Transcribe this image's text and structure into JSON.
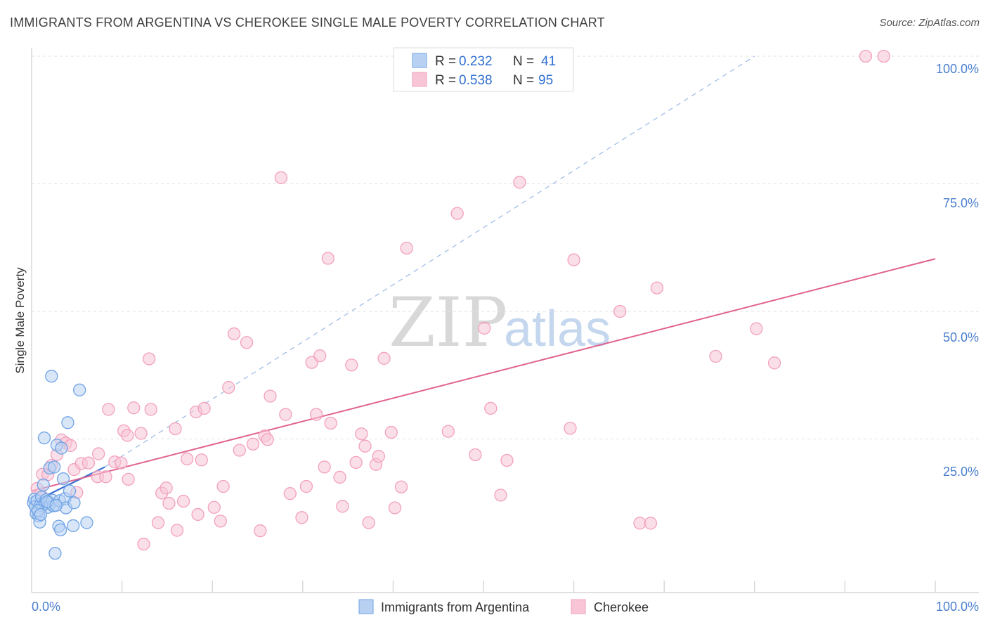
{
  "title": "IMMIGRANTS FROM ARGENTINA VS CHEROKEE SINGLE MALE POVERTY CORRELATION CHART",
  "source": "Source: ZipAtlas.com",
  "watermark": {
    "part1": "ZIP",
    "part2": "atlas"
  },
  "chart_data": {
    "type": "scatter",
    "title": "IMMIGRANTS FROM ARGENTINA VS CHEROKEE SINGLE MALE POVERTY CORRELATION CHART",
    "xlabel": "",
    "ylabel": "Single Male Poverty",
    "xlim": [
      0,
      100
    ],
    "ylim": [
      0,
      100
    ],
    "x_tick_labels": [
      "0.0%",
      "100.0%"
    ],
    "y_tick_labels": [
      "100.0%",
      "75.0%",
      "50.0%",
      "25.0%"
    ],
    "y_ticks": [
      100,
      75,
      50,
      25
    ],
    "grid": true,
    "legend": {
      "position": "top-center",
      "entries": [
        {
          "r_label": "R =",
          "r_value": "0.232",
          "n_label": "N =",
          "n_value": "41"
        },
        {
          "r_label": "R =",
          "r_value": "0.538",
          "n_label": "N =",
          "n_value": "95"
        }
      ]
    },
    "series": [
      {
        "name": "Immigrants from Argentina",
        "color": "#6fa3e6",
        "fill": "#b8d1f3",
        "trend": {
          "x": [
            0,
            8.1
          ],
          "y": [
            12.5,
            19.5
          ],
          "style": "solid",
          "color": "#3a6fd0"
        },
        "trend_extension": {
          "x": [
            8.1,
            80
          ],
          "y": [
            19.5,
            100
          ],
          "style": "dashed",
          "color": "#9ab9e6"
        },
        "points": [
          [
            0.2,
            12.5
          ],
          [
            0.3,
            13.2
          ],
          [
            0.4,
            11.8
          ],
          [
            0.5,
            10.4
          ],
          [
            0.6,
            12.9
          ],
          [
            0.8,
            9.9
          ],
          [
            0.9,
            8.7
          ],
          [
            1.0,
            12.2
          ],
          [
            1.1,
            13.6
          ],
          [
            1.2,
            11.9
          ],
          [
            1.3,
            16.0
          ],
          [
            1.4,
            25.2
          ],
          [
            1.5,
            12.4
          ],
          [
            1.6,
            13.1
          ],
          [
            1.8,
            11.6
          ],
          [
            1.9,
            12.6
          ],
          [
            2.0,
            19.3
          ],
          [
            2.1,
            12.3
          ],
          [
            2.2,
            37.3
          ],
          [
            2.3,
            13.0
          ],
          [
            2.4,
            11.9
          ],
          [
            2.5,
            19.5
          ],
          [
            2.6,
            2.6
          ],
          [
            2.8,
            23.8
          ],
          [
            3.0,
            7.9
          ],
          [
            3.1,
            12.9
          ],
          [
            3.2,
            7.2
          ],
          [
            3.3,
            23.2
          ],
          [
            3.5,
            17.2
          ],
          [
            3.7,
            13.3
          ],
          [
            3.8,
            11.5
          ],
          [
            4.0,
            28.2
          ],
          [
            4.2,
            14.8
          ],
          [
            4.6,
            8.0
          ],
          [
            4.7,
            12.5
          ],
          [
            5.3,
            34.6
          ],
          [
            6.1,
            8.6
          ],
          [
            0.7,
            11.0
          ],
          [
            1.7,
            12.7
          ],
          [
            2.7,
            12.0
          ],
          [
            1.0,
            10.2
          ]
        ]
      },
      {
        "name": "Cherokee",
        "color": "#f2a0bd",
        "fill": "#f8c5d6",
        "trend": {
          "x": [
            0,
            100
          ],
          "y": [
            14.8,
            60.3
          ],
          "style": "solid",
          "color": "#e0608e"
        },
        "points": [
          [
            0.6,
            15.3
          ],
          [
            1.0,
            14.2
          ],
          [
            1.2,
            18.1
          ],
          [
            1.8,
            18.0
          ],
          [
            2.2,
            19.8
          ],
          [
            2.8,
            21.9
          ],
          [
            3.3,
            24.8
          ],
          [
            3.8,
            24.2
          ],
          [
            4.3,
            23.7
          ],
          [
            4.7,
            19.0
          ],
          [
            5.0,
            14.5
          ],
          [
            5.5,
            20.2
          ],
          [
            6.3,
            20.3
          ],
          [
            7.3,
            17.6
          ],
          [
            7.4,
            22.1
          ],
          [
            8.2,
            17.6
          ],
          [
            8.5,
            30.8
          ],
          [
            9.2,
            20.5
          ],
          [
            9.9,
            20.3
          ],
          [
            10.2,
            26.6
          ],
          [
            10.6,
            25.7
          ],
          [
            10.7,
            17.1
          ],
          [
            11.3,
            31.1
          ],
          [
            12.1,
            26.1
          ],
          [
            12.4,
            4.4
          ],
          [
            13.0,
            40.7
          ],
          [
            13.2,
            30.8
          ],
          [
            14.0,
            8.6
          ],
          [
            14.4,
            14.4
          ],
          [
            14.9,
            15.4
          ],
          [
            15.2,
            12.4
          ],
          [
            15.9,
            27.0
          ],
          [
            16.1,
            7.1
          ],
          [
            16.8,
            12.8
          ],
          [
            17.2,
            21.1
          ],
          [
            18.2,
            30.3
          ],
          [
            18.4,
            10.2
          ],
          [
            18.8,
            20.9
          ],
          [
            19.1,
            31.0
          ],
          [
            20.2,
            11.6
          ],
          [
            20.9,
            8.9
          ],
          [
            21.2,
            15.7
          ],
          [
            21.8,
            35.1
          ],
          [
            22.4,
            45.6
          ],
          [
            23.0,
            22.8
          ],
          [
            23.8,
            43.9
          ],
          [
            24.5,
            24.0
          ],
          [
            25.3,
            7.0
          ],
          [
            25.8,
            25.6
          ],
          [
            26.1,
            24.9
          ],
          [
            26.4,
            33.4
          ],
          [
            27.6,
            76.2
          ],
          [
            28.1,
            29.8
          ],
          [
            28.6,
            14.3
          ],
          [
            29.9,
            9.6
          ],
          [
            30.4,
            15.7
          ],
          [
            31.0,
            40.0
          ],
          [
            31.5,
            29.8
          ],
          [
            31.9,
            41.3
          ],
          [
            32.4,
            19.5
          ],
          [
            32.8,
            60.4
          ],
          [
            33.1,
            28.1
          ],
          [
            34.1,
            17.5
          ],
          [
            34.4,
            11.8
          ],
          [
            35.4,
            39.5
          ],
          [
            35.9,
            20.4
          ],
          [
            36.5,
            26.0
          ],
          [
            36.9,
            23.6
          ],
          [
            37.3,
            8.6
          ],
          [
            38.1,
            20.0
          ],
          [
            38.4,
            21.6
          ],
          [
            39.0,
            40.8
          ],
          [
            39.8,
            26.3
          ],
          [
            40.2,
            11.5
          ],
          [
            40.9,
            15.6
          ],
          [
            41.5,
            62.4
          ],
          [
            46.1,
            26.5
          ],
          [
            47.1,
            69.2
          ],
          [
            49.1,
            21.9
          ],
          [
            50.1,
            46.7
          ],
          [
            50.8,
            31.0
          ],
          [
            51.9,
            14.0
          ],
          [
            52.6,
            20.8
          ],
          [
            54.0,
            75.3
          ],
          [
            59.6,
            27.1
          ],
          [
            60.0,
            60.1
          ],
          [
            65.1,
            50.0
          ],
          [
            67.3,
            8.5
          ],
          [
            68.5,
            8.5
          ],
          [
            69.2,
            54.6
          ],
          [
            75.7,
            41.2
          ],
          [
            80.2,
            46.6
          ],
          [
            82.2,
            39.9
          ],
          [
            92.3,
            100.0
          ],
          [
            94.3,
            100.0
          ]
        ]
      }
    ]
  }
}
